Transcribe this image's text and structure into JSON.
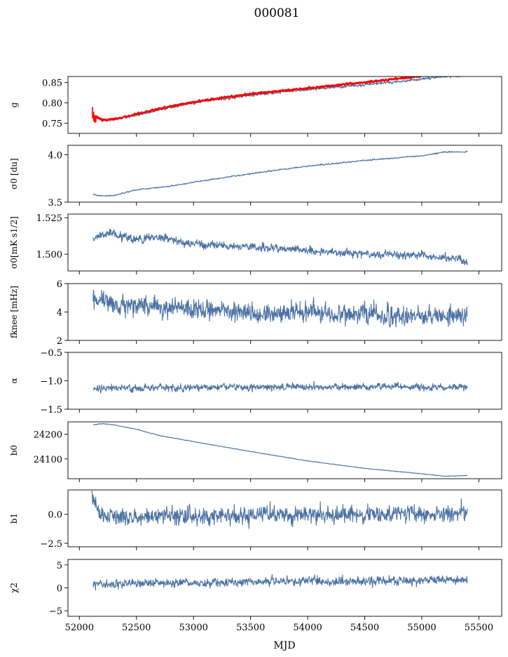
{
  "figure": {
    "title": "000081",
    "xlabel": "MJD",
    "line_color": "#4c72a4",
    "model_color": "#ff0000"
  },
  "chart_data": {
    "type": "line",
    "title": "000081",
    "xlabel": "MJD",
    "xlim": [
      51900,
      55700
    ],
    "xticks": [
      52000,
      52500,
      53000,
      53500,
      54000,
      54500,
      55000,
      55500
    ],
    "xtick_labels": [
      "52000",
      "52500",
      "53000",
      "53500",
      "54000",
      "54500",
      "55000",
      "55500"
    ],
    "grid": false,
    "panels": [
      {
        "id": "g",
        "ylabel": "g",
        "ylim": [
          0.725,
          0.865
        ],
        "yticks": [
          0.75,
          0.8,
          0.85
        ],
        "ytick_labels": [
          "0.75",
          "0.80",
          "0.85"
        ],
        "series": [
          {
            "role": "data",
            "noise": 0.002,
            "anchors": [
              [
                52110,
                0.785
              ],
              [
                52130,
                0.765
              ],
              [
                52200,
                0.757
              ],
              [
                52300,
                0.759
              ],
              [
                52500,
                0.77
              ],
              [
                52700,
                0.783
              ],
              [
                53000,
                0.8
              ],
              [
                53300,
                0.812
              ],
              [
                53600,
                0.822
              ],
              [
                54000,
                0.833
              ],
              [
                54500,
                0.845
              ],
              [
                54800,
                0.852
              ],
              [
                55000,
                0.859
              ],
              [
                55200,
                0.865
              ],
              [
                55400,
                0.868
              ]
            ]
          },
          {
            "role": "model",
            "noise": 0.0015,
            "anchors": [
              [
                52120,
                0.77
              ],
              [
                52200,
                0.758
              ],
              [
                52300,
                0.76
              ],
              [
                52500,
                0.772
              ],
              [
                52700,
                0.786
              ],
              [
                53000,
                0.802
              ],
              [
                53300,
                0.815
              ],
              [
                53600,
                0.825
              ],
              [
                54000,
                0.836
              ],
              [
                54500,
                0.851
              ],
              [
                54800,
                0.86
              ],
              [
                55000,
                0.866
              ]
            ],
            "errorbars": [
              [
                52115,
                0.79,
                0.762
              ],
              [
                52125,
                0.778,
                0.755
              ],
              [
                52135,
                0.767,
                0.751
              ],
              [
                52145,
                0.765,
                0.752
              ]
            ]
          }
        ]
      },
      {
        "id": "sigma0",
        "ylabel": "σ0 [du]",
        "ylim": [
          3.5,
          4.1
        ],
        "yticks": [
          3.5,
          4.0
        ],
        "ytick_labels": [
          "3.5",
          "4.0"
        ],
        "series": [
          {
            "role": "data",
            "noise": 0.004,
            "anchors": [
              [
                52120,
                3.58
              ],
              [
                52180,
                3.565
              ],
              [
                52300,
                3.57
              ],
              [
                52500,
                3.63
              ],
              [
                52800,
                3.67
              ],
              [
                53100,
                3.73
              ],
              [
                53500,
                3.8
              ],
              [
                54000,
                3.88
              ],
              [
                54500,
                3.94
              ],
              [
                55000,
                3.99
              ],
              [
                55200,
                4.03
              ],
              [
                55400,
                4.03
              ]
            ]
          }
        ]
      },
      {
        "id": "sigma0_mk",
        "ylabel": "σ0[mK s1/2]",
        "ylim": [
          1.4885,
          1.5275
        ],
        "yticks": [
          1.5,
          1.525
        ],
        "ytick_labels": [
          "1.500",
          "1.525"
        ],
        "series": [
          {
            "role": "data",
            "noise": 0.0016,
            "anchors": [
              [
                52120,
                1.511
              ],
              [
                52200,
                1.515
              ],
              [
                52300,
                1.514
              ],
              [
                52500,
                1.51
              ],
              [
                52700,
                1.512
              ],
              [
                53000,
                1.507
              ],
              [
                53500,
                1.505
              ],
              [
                54000,
                1.503
              ],
              [
                54500,
                1.5
              ],
              [
                55000,
                1.499
              ],
              [
                55300,
                1.497
              ],
              [
                55400,
                1.494
              ]
            ]
          }
        ]
      },
      {
        "id": "fknee",
        "ylabel": "fknee [mHz]",
        "ylim": [
          2,
          6
        ],
        "yticks": [
          2,
          4,
          6
        ],
        "ytick_labels": [
          "2",
          "4",
          "6"
        ],
        "series": [
          {
            "role": "data",
            "noise": 0.42,
            "anchors": [
              [
                52120,
                4.9
              ],
              [
                52300,
                4.6
              ],
              [
                52700,
                4.4
              ],
              [
                53000,
                4.2
              ],
              [
                53500,
                4.0
              ],
              [
                54000,
                3.9
              ],
              [
                54500,
                3.85
              ],
              [
                55000,
                3.75
              ],
              [
                55400,
                3.65
              ]
            ]
          }
        ]
      },
      {
        "id": "alpha",
        "ylabel": "α",
        "ylim": [
          -1.5,
          -0.5
        ],
        "yticks": [
          -1.5,
          -1.0,
          -0.5
        ],
        "ytick_labels": [
          "−1.5",
          "−1.0",
          "−0.5"
        ],
        "series": [
          {
            "role": "data",
            "noise": 0.035,
            "anchors": [
              [
                52120,
                -1.13
              ],
              [
                52500,
                -1.12
              ],
              [
                53000,
                -1.12
              ],
              [
                53500,
                -1.11
              ],
              [
                54000,
                -1.11
              ],
              [
                54500,
                -1.11
              ],
              [
                55000,
                -1.11
              ],
              [
                55400,
                -1.11
              ]
            ]
          }
        ]
      },
      {
        "id": "b0",
        "ylabel": "b0",
        "ylim": [
          24020,
          24250
        ],
        "yticks": [
          24100,
          24200
        ],
        "ytick_labels": [
          "24100",
          "24200"
        ],
        "series": [
          {
            "role": "data",
            "noise": 0.7,
            "anchors": [
              [
                52120,
                24238
              ],
              [
                52200,
                24243
              ],
              [
                52300,
                24238
              ],
              [
                52500,
                24220
              ],
              [
                52700,
                24195
              ],
              [
                53000,
                24170
              ],
              [
                53500,
                24130
              ],
              [
                54000,
                24092
              ],
              [
                54500,
                24062
              ],
              [
                55000,
                24040
              ],
              [
                55200,
                24030
              ],
              [
                55400,
                24033
              ]
            ]
          }
        ]
      },
      {
        "id": "b1",
        "ylabel": "b1",
        "ylim": [
          -2.8,
          2.1
        ],
        "yticks": [
          -2.5,
          0.0
        ],
        "ytick_labels": [
          "−2.5",
          "0.0"
        ],
        "series": [
          {
            "role": "data",
            "noise": 0.45,
            "anchors": [
              [
                52110,
                1.9
              ],
              [
                52130,
                0.9
              ],
              [
                52170,
                0.0
              ],
              [
                52400,
                -0.2
              ],
              [
                53000,
                -0.1
              ],
              [
                53500,
                -0.05
              ],
              [
                54000,
                0.0
              ],
              [
                54500,
                0.0
              ],
              [
                55000,
                0.0
              ],
              [
                55400,
                0.1
              ]
            ]
          }
        ]
      },
      {
        "id": "chi2",
        "ylabel": "χ2",
        "ylim": [
          -6.2,
          6.2
        ],
        "yticks": [
          -5,
          0,
          5
        ],
        "ytick_labels": [
          "−5",
          "0",
          "5"
        ],
        "series": [
          {
            "role": "data",
            "noise": 0.55,
            "anchors": [
              [
                52120,
                0.9
              ],
              [
                52500,
                1.0
              ],
              [
                53000,
                1.2
              ],
              [
                53500,
                1.3
              ],
              [
                54000,
                1.5
              ],
              [
                54500,
                1.4
              ],
              [
                55000,
                1.5
              ],
              [
                55400,
                1.8
              ]
            ]
          }
        ]
      }
    ]
  }
}
